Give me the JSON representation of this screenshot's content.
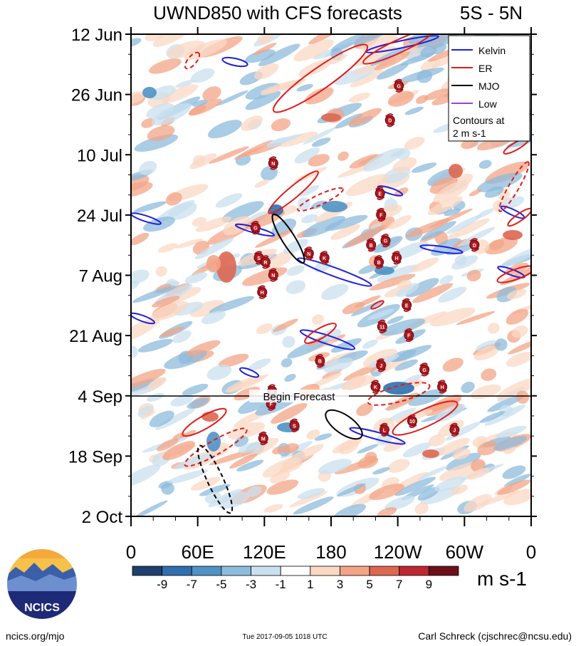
{
  "chart_data": {
    "type": "heatmap",
    "title": "UWND850 with CFS forecasts",
    "region": "5S - 5N",
    "units": "m s-1",
    "y_tick_labels": [
      "12 Jun",
      "26 Jun",
      "10 Jul",
      "24 Jul",
      "7 Aug",
      "21 Aug",
      "4 Sep",
      "18 Sep",
      "2 Oct"
    ],
    "x_tick_labels": [
      "0",
      "60E",
      "120E",
      "180",
      "120W",
      "60W",
      "0"
    ],
    "x_range_deg": [
      0,
      360
    ],
    "forecast_label": "Begin Forecast",
    "colorbar": {
      "labels": [
        "-9",
        "-7",
        "-5",
        "-3",
        "-1",
        "1",
        "3",
        "5",
        "7",
        "9"
      ],
      "colors": [
        "#1d3f6e",
        "#2f6fae",
        "#4f92c5",
        "#8dbbdc",
        "#c9e0ef",
        "#ffffff",
        "#fbd8c4",
        "#f3a486",
        "#dd6750",
        "#bd2730",
        "#6e0f1c"
      ]
    },
    "legend": {
      "items": [
        {
          "name": "Kelvin",
          "color": "#1f1fdd"
        },
        {
          "name": "ER",
          "color": "#e01b1b"
        },
        {
          "name": "MJO",
          "color": "#000000"
        },
        {
          "name": "Low",
          "color": "#a040d0"
        }
      ],
      "note_line1": "Contours at",
      "note_line2": "2 m s-1"
    },
    "storm_markers": [
      {
        "label": "G",
        "lon": 241,
        "day": 12
      },
      {
        "label": "D",
        "lon": 233,
        "day": 20
      },
      {
        "label": "N",
        "lon": 128,
        "day": 30
      },
      {
        "label": "E",
        "lon": 224,
        "day": 37
      },
      {
        "label": "F",
        "lon": 225,
        "day": 42
      },
      {
        "label": "G",
        "lon": 112,
        "day": 45
      },
      {
        "label": "B",
        "lon": 216,
        "day": 49
      },
      {
        "label": "G",
        "lon": 229,
        "day": 48
      },
      {
        "label": "D",
        "lon": 309,
        "day": 49
      },
      {
        "label": "S",
        "lon": 115,
        "day": 52
      },
      {
        "label": "R",
        "lon": 121,
        "day": 53
      },
      {
        "label": "N",
        "lon": 160,
        "day": 51
      },
      {
        "label": "K",
        "lon": 174,
        "day": 52
      },
      {
        "label": "B",
        "lon": 223,
        "day": 53
      },
      {
        "label": "H",
        "lon": 239,
        "day": 52
      },
      {
        "label": "N",
        "lon": 128,
        "day": 56
      },
      {
        "label": "H",
        "lon": 118,
        "day": 60
      },
      {
        "label": "E",
        "lon": 248,
        "day": 63
      },
      {
        "label": "11",
        "lon": 226,
        "day": 68
      },
      {
        "label": "F",
        "lon": 250,
        "day": 70
      },
      {
        "label": "B",
        "lon": 170,
        "day": 76
      },
      {
        "label": "J",
        "lon": 225,
        "day": 77
      },
      {
        "label": "G",
        "lon": 264,
        "day": 78
      },
      {
        "label": "H",
        "lon": 127,
        "day": 83
      },
      {
        "label": "K",
        "lon": 220,
        "day": 82
      },
      {
        "label": "H",
        "lon": 280,
        "day": 82
      },
      {
        "label": "F",
        "lon": 126,
        "day": 86
      },
      {
        "label": "S",
        "lon": 147,
        "day": 91
      },
      {
        "label": "10",
        "lon": 253,
        "day": 90
      },
      {
        "label": "L",
        "lon": 228,
        "day": 92
      },
      {
        "label": "J",
        "lon": 291,
        "day": 92
      },
      {
        "label": "M",
        "lon": 119,
        "day": 94
      }
    ]
  },
  "footer": {
    "site": "ncics.org/mjo",
    "timestamp": "Tue 2017-09-05 1018 UTC",
    "author": "Carl Schreck (cjschrec@ncsu.edu)",
    "logo_text": "NCICS"
  }
}
